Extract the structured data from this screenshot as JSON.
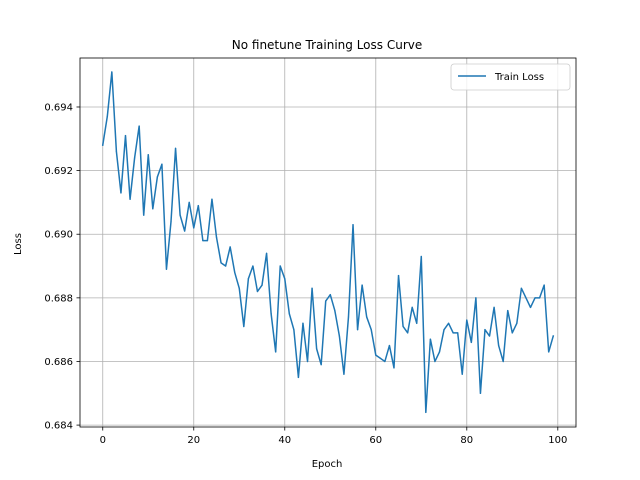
{
  "chart_data": {
    "type": "line",
    "title": "No finetune Training Loss Curve",
    "xlabel": "Epoch",
    "ylabel": "Loss",
    "xlim": [
      -5,
      104
    ],
    "ylim": [
      0.68394,
      0.69554
    ],
    "x_ticks": [
      0,
      20,
      40,
      60,
      80,
      100
    ],
    "x_tick_labels": [
      "0",
      "20",
      "40",
      "60",
      "80",
      "100"
    ],
    "y_ticks": [
      0.684,
      0.686,
      0.688,
      0.69,
      0.692,
      0.694
    ],
    "y_tick_labels": [
      "0.684",
      "0.686",
      "0.688",
      "0.690",
      "0.692",
      "0.694"
    ],
    "grid": true,
    "legend_position": "top-right",
    "series": [
      {
        "name": "Train Loss",
        "color": "#1f77b4",
        "x": [
          0,
          1,
          2,
          3,
          4,
          5,
          6,
          7,
          8,
          9,
          10,
          11,
          12,
          13,
          14,
          15,
          16,
          17,
          18,
          19,
          20,
          21,
          22,
          23,
          24,
          25,
          26,
          27,
          28,
          29,
          30,
          31,
          32,
          33,
          34,
          35,
          36,
          37,
          38,
          39,
          40,
          41,
          42,
          43,
          44,
          45,
          46,
          47,
          48,
          49,
          50,
          51,
          52,
          53,
          54,
          55,
          56,
          57,
          58,
          59,
          60,
          61,
          62,
          63,
          64,
          65,
          66,
          67,
          68,
          69,
          70,
          71,
          72,
          73,
          74,
          75,
          76,
          77,
          78,
          79,
          80,
          81,
          82,
          83,
          84,
          85,
          86,
          87,
          88,
          89,
          90,
          91,
          92,
          93,
          94,
          95,
          96,
          97,
          98,
          99
        ],
        "values": [
          0.6928,
          0.6937,
          0.6951,
          0.6926,
          0.6913,
          0.6931,
          0.6911,
          0.6924,
          0.6934,
          0.6906,
          0.6925,
          0.6908,
          0.6918,
          0.6922,
          0.6889,
          0.6904,
          0.6927,
          0.6906,
          0.6901,
          0.691,
          0.6902,
          0.6909,
          0.6898,
          0.6898,
          0.6911,
          0.6899,
          0.6891,
          0.689,
          0.6896,
          0.6888,
          0.6883,
          0.6871,
          0.6886,
          0.689,
          0.6882,
          0.6884,
          0.6894,
          0.6875,
          0.6863,
          0.689,
          0.6886,
          0.6875,
          0.687,
          0.6855,
          0.6872,
          0.686,
          0.6883,
          0.6864,
          0.6859,
          0.6879,
          0.6881,
          0.6876,
          0.6868,
          0.6856,
          0.6874,
          0.6903,
          0.687,
          0.6884,
          0.6874,
          0.687,
          0.6862,
          0.6861,
          0.686,
          0.6865,
          0.6858,
          0.6887,
          0.6871,
          0.6869,
          0.6877,
          0.6872,
          0.6893,
          0.6844,
          0.6867,
          0.686,
          0.6863,
          0.687,
          0.6872,
          0.6869,
          0.6869,
          0.6856,
          0.6873,
          0.6866,
          0.688,
          0.685,
          0.687,
          0.6868,
          0.6877,
          0.6865,
          0.686,
          0.6876,
          0.6869,
          0.6872,
          0.6883,
          0.688,
          0.6877,
          0.688,
          0.688,
          0.6884,
          0.6863,
          0.6868
        ]
      }
    ]
  }
}
